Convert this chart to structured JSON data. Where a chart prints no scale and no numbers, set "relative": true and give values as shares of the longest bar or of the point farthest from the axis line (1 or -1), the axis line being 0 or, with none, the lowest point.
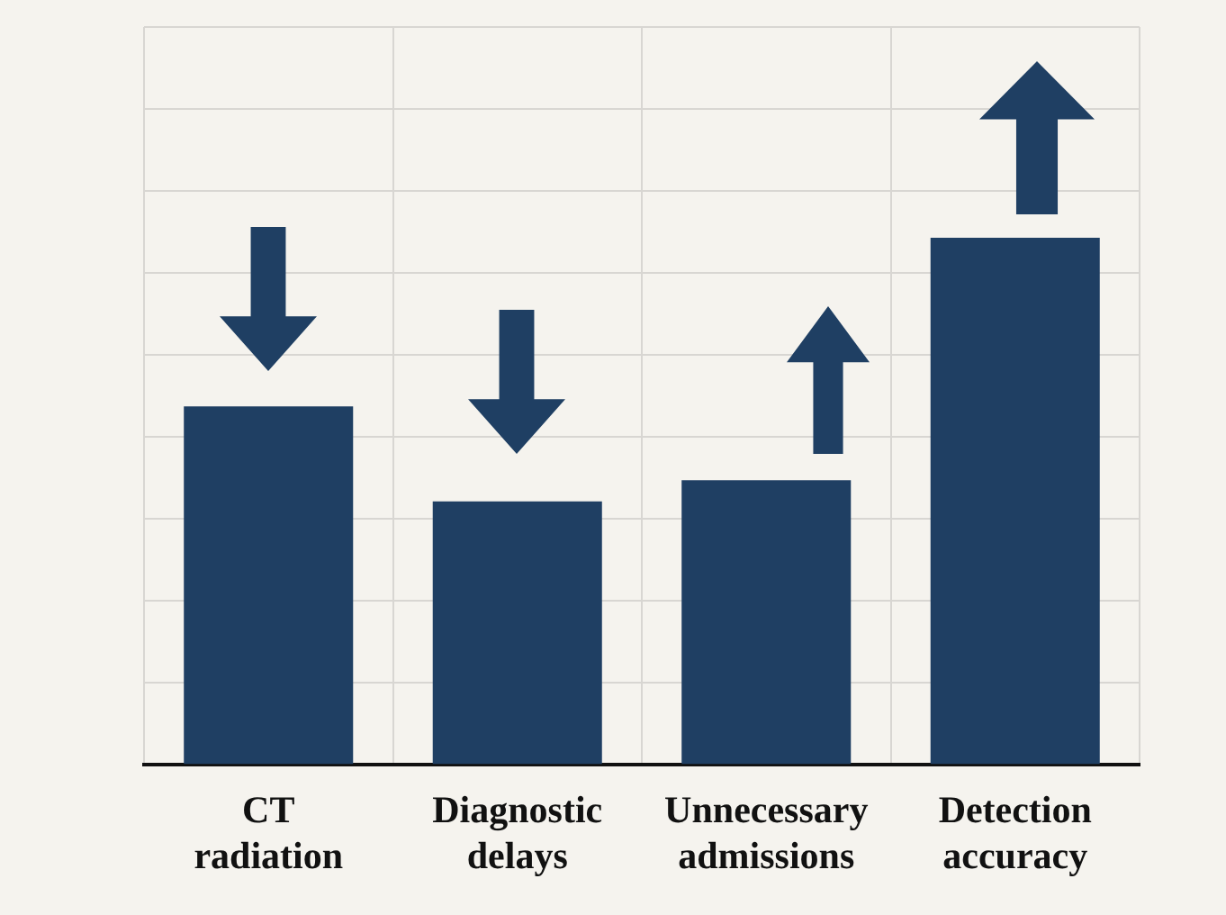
{
  "chart_data": {
    "type": "bar",
    "relative": true,
    "categories": [
      "CT radiation",
      "Diagnostic delays",
      "Unnecessary admissions",
      "Detection accuracy"
    ],
    "values": [
      0.68,
      0.5,
      0.54,
      1
    ],
    "color": "#1f3f63",
    "grid": true,
    "legend": false
  }
}
